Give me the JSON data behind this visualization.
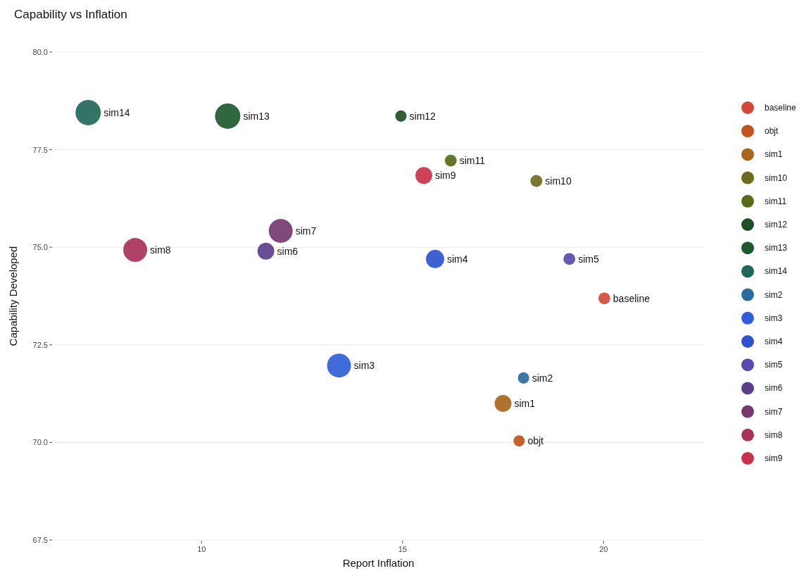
{
  "chart_data": {
    "type": "bubble",
    "title": "Capability vs Inflation",
    "xlabel": "Report Inflation",
    "ylabel": "Capability Developed",
    "xlim": [
      6.3,
      22.5
    ],
    "xticks": [
      10,
      15,
      20
    ],
    "ylim": [
      67.5,
      80
    ],
    "yticks": [
      {
        "value": 67.5,
        "label": "67.5"
      },
      {
        "value": 70,
        "label": "70.0"
      },
      {
        "value": 72.5,
        "label": "72.5"
      },
      {
        "value": 75,
        "label": "75.0"
      },
      {
        "value": 77.5,
        "label": "77.5"
      },
      {
        "value": 80,
        "label": "80.0"
      }
    ],
    "grid": "y",
    "legend": "right",
    "series": [
      {
        "name": "baseline",
        "color": "#d04a3c",
        "x": [
          20.02
        ],
        "values": [
          73.69
        ],
        "sizes": [
          0.22
        ]
      },
      {
        "name": "objt",
        "color": "#c0531f",
        "x": [
          17.9
        ],
        "values": [
          70.04
        ],
        "sizes": [
          0.2
        ]
      },
      {
        "name": "sim1",
        "color": "#a8661e",
        "x": [
          17.5
        ],
        "values": [
          71.0
        ],
        "sizes": [
          0.44
        ]
      },
      {
        "name": "sim10",
        "color": "#6e6b1e",
        "x": [
          18.33
        ],
        "values": [
          76.7
        ],
        "sizes": [
          0.22
        ]
      },
      {
        "name": "sim11",
        "color": "#566b1a",
        "x": [
          16.2
        ],
        "values": [
          77.22
        ],
        "sizes": [
          0.22
        ]
      },
      {
        "name": "sim12",
        "color": "#1f4f26",
        "x": [
          14.96
        ],
        "values": [
          78.36
        ],
        "sizes": [
          0.2
        ]
      },
      {
        "name": "sim13",
        "color": "#1e5a2e",
        "x": [
          10.65
        ],
        "values": [
          78.36
        ],
        "sizes": [
          1
        ]
      },
      {
        "name": "sim14",
        "color": "#22685a",
        "x": [
          7.18
        ],
        "values": [
          78.45
        ],
        "sizes": [
          1
        ]
      },
      {
        "name": "sim2",
        "color": "#2b6a9c",
        "x": [
          18.01
        ],
        "values": [
          71.65
        ],
        "sizes": [
          0.2
        ]
      },
      {
        "name": "sim3",
        "color": "#2f5fd6",
        "x": [
          13.42
        ],
        "values": [
          71.97
        ],
        "sizes": [
          0.89
        ]
      },
      {
        "name": "sim4",
        "color": "#2f52cc",
        "x": [
          15.81
        ],
        "values": [
          74.7
        ],
        "sizes": [
          0.52
        ]
      },
      {
        "name": "sim5",
        "color": "#5a4aad",
        "x": [
          19.15
        ],
        "values": [
          74.7
        ],
        "sizes": [
          0.22
        ]
      },
      {
        "name": "sim6",
        "color": "#5c3f8c",
        "x": [
          11.6
        ],
        "values": [
          74.9
        ],
        "sizes": [
          0.44
        ]
      },
      {
        "name": "sim7",
        "color": "#743a6e",
        "x": [
          11.97
        ],
        "values": [
          75.42
        ],
        "sizes": [
          0.89
        ]
      },
      {
        "name": "sim8",
        "color": "#a8335a",
        "x": [
          8.35
        ],
        "values": [
          74.93
        ],
        "sizes": [
          0.89
        ]
      },
      {
        "name": "sim9",
        "color": "#c8324a",
        "x": [
          15.53
        ],
        "values": [
          76.84
        ],
        "sizes": [
          0.44
        ]
      }
    ]
  }
}
